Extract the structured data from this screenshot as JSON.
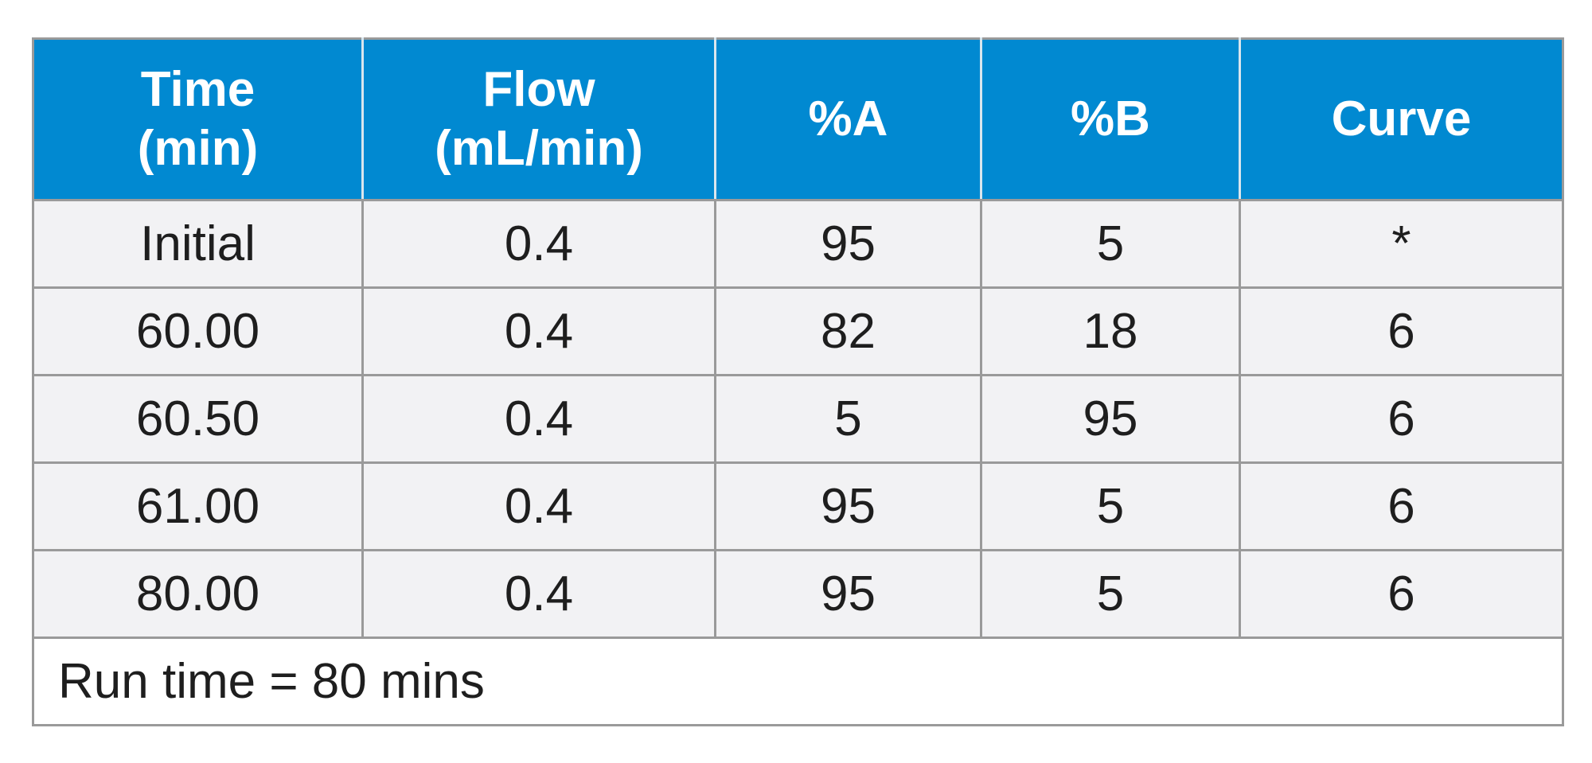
{
  "table": {
    "headers": [
      [
        "Time",
        "(min)"
      ],
      [
        "Flow",
        "(mL/min)"
      ],
      [
        "%A"
      ],
      [
        "%B"
      ],
      [
        "Curve"
      ]
    ],
    "rows": [
      [
        "Initial",
        "0.4",
        "95",
        "5",
        "*"
      ],
      [
        "60.00",
        "0.4",
        "82",
        "18",
        "6"
      ],
      [
        "60.50",
        "0.4",
        "5",
        "95",
        "6"
      ],
      [
        "61.00",
        "0.4",
        "95",
        "5",
        "6"
      ],
      [
        "80.00",
        "0.4",
        "95",
        "5",
        "6"
      ]
    ],
    "footer": "Run time = 80 mins"
  },
  "colors": {
    "header_bg": "#0189d1",
    "header_text": "#ffffff",
    "row_bg": "#f2f2f4",
    "border": "#9a9a9a"
  }
}
